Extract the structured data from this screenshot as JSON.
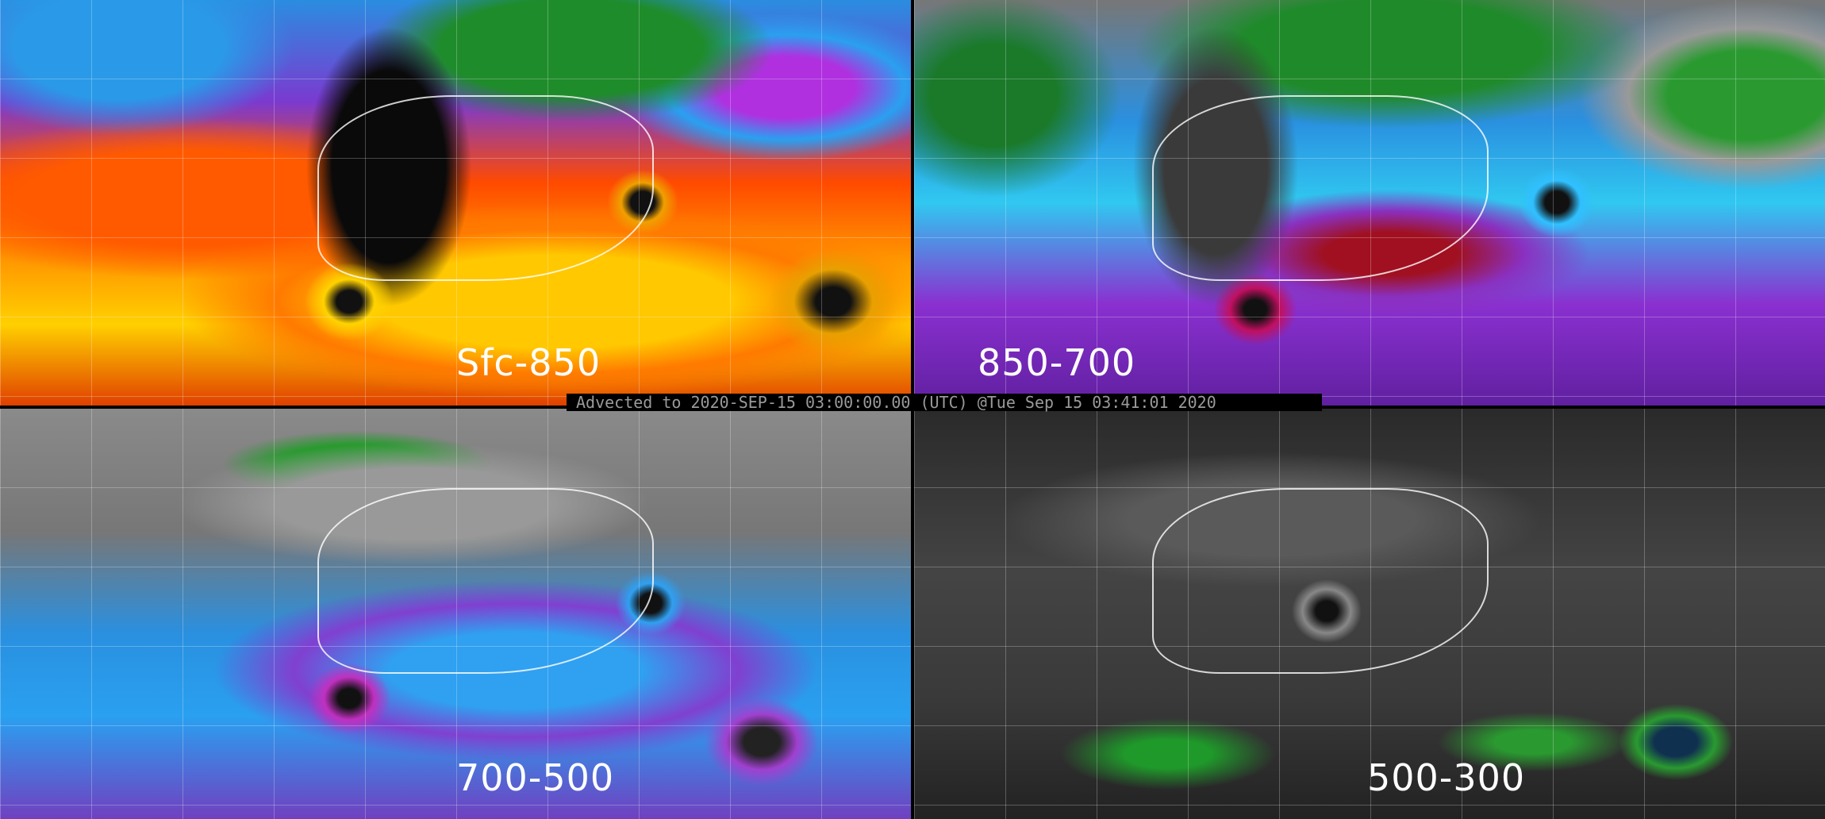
{
  "banner": {
    "text": "Advected to 2020-SEP-15 03:00:00.00 (UTC) @Tue Sep 15 03:41:01 2020"
  },
  "panels": [
    {
      "label": "Sfc-850"
    },
    {
      "label": "850-700"
    },
    {
      "label": "700-500"
    },
    {
      "label": "500-300"
    }
  ]
}
